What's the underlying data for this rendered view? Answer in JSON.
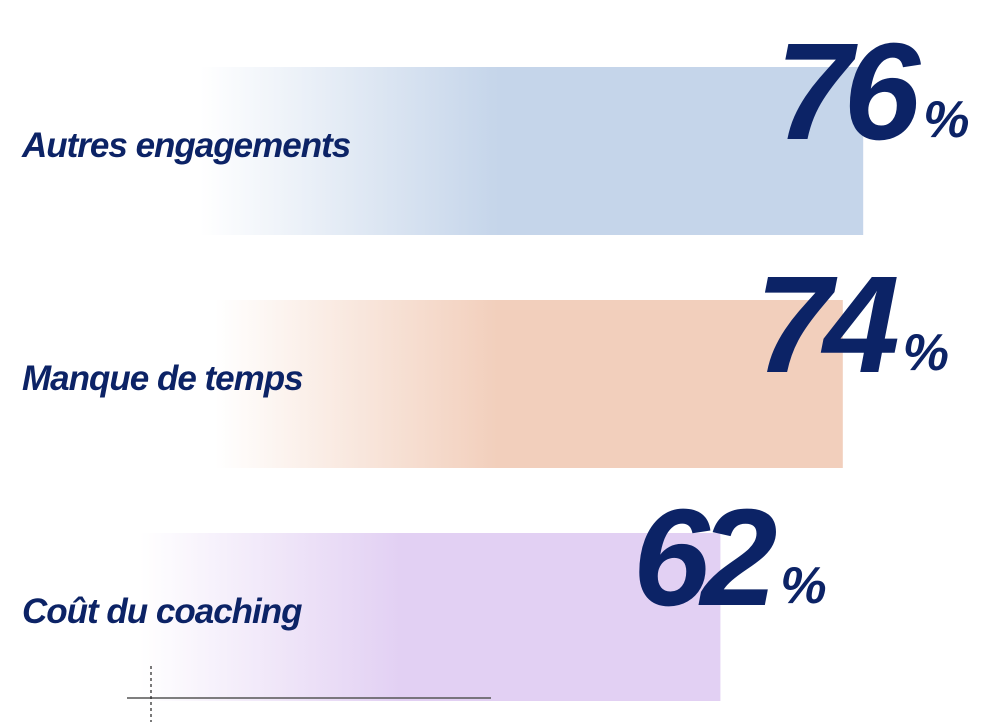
{
  "chart_data": {
    "type": "bar",
    "orientation": "horizontal",
    "categories": [
      "Autres engagements",
      "Manque de temps",
      "Coût du coaching"
    ],
    "values": [
      76,
      74,
      62
    ],
    "unit": "%",
    "value_labels": [
      "76",
      "74",
      "62"
    ],
    "title": "",
    "xlabel": "",
    "ylabel": "",
    "xlim": [
      0,
      100
    ],
    "grid": false,
    "legend": "none"
  },
  "colors": {
    "text": "#0c2366",
    "bars": [
      "#c5d5ea",
      "#f2cfbc",
      "#e2d0f3"
    ],
    "axis": "#555555"
  }
}
